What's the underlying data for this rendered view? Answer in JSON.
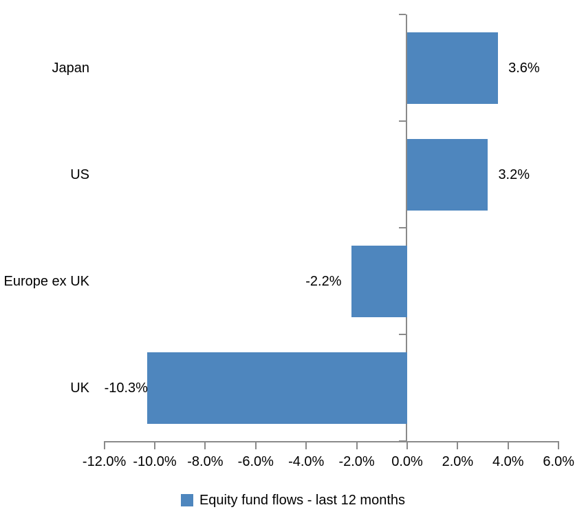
{
  "chart_data": {
    "type": "bar",
    "orientation": "horizontal",
    "categories": [
      "Japan",
      "US",
      "Europe ex UK",
      "UK"
    ],
    "values": [
      3.6,
      3.2,
      -2.2,
      -10.3
    ],
    "data_labels": [
      "3.6%",
      "3.2%",
      "-2.2%",
      "-10.3%"
    ],
    "series": [
      {
        "name": "Equity fund flows - last 12 months",
        "values": [
          3.6,
          3.2,
          -2.2,
          -10.3
        ]
      }
    ],
    "title": "",
    "xlabel": "",
    "ylabel": "",
    "xlim": [
      -12,
      6
    ],
    "x_tick_values": [
      -12,
      -10,
      -8,
      -6,
      -4,
      -2,
      0,
      2,
      4,
      6
    ],
    "x_tick_labels": [
      "-12.0%",
      "-10.0%",
      "-8.0%",
      "-6.0%",
      "-4.0%",
      "-2.0%",
      "0.0%",
      "2.0%",
      "4.0%",
      "6.0%"
    ],
    "grid": false,
    "legend_position": "bottom",
    "bar_color": "#4E86BE",
    "axis_color": "#8A8A8A",
    "text_color": "#000000",
    "background_color": "#FFFFFF"
  },
  "legend": {
    "label": "Equity fund flows - last 12 months",
    "swatch_color": "#4E86BE"
  }
}
